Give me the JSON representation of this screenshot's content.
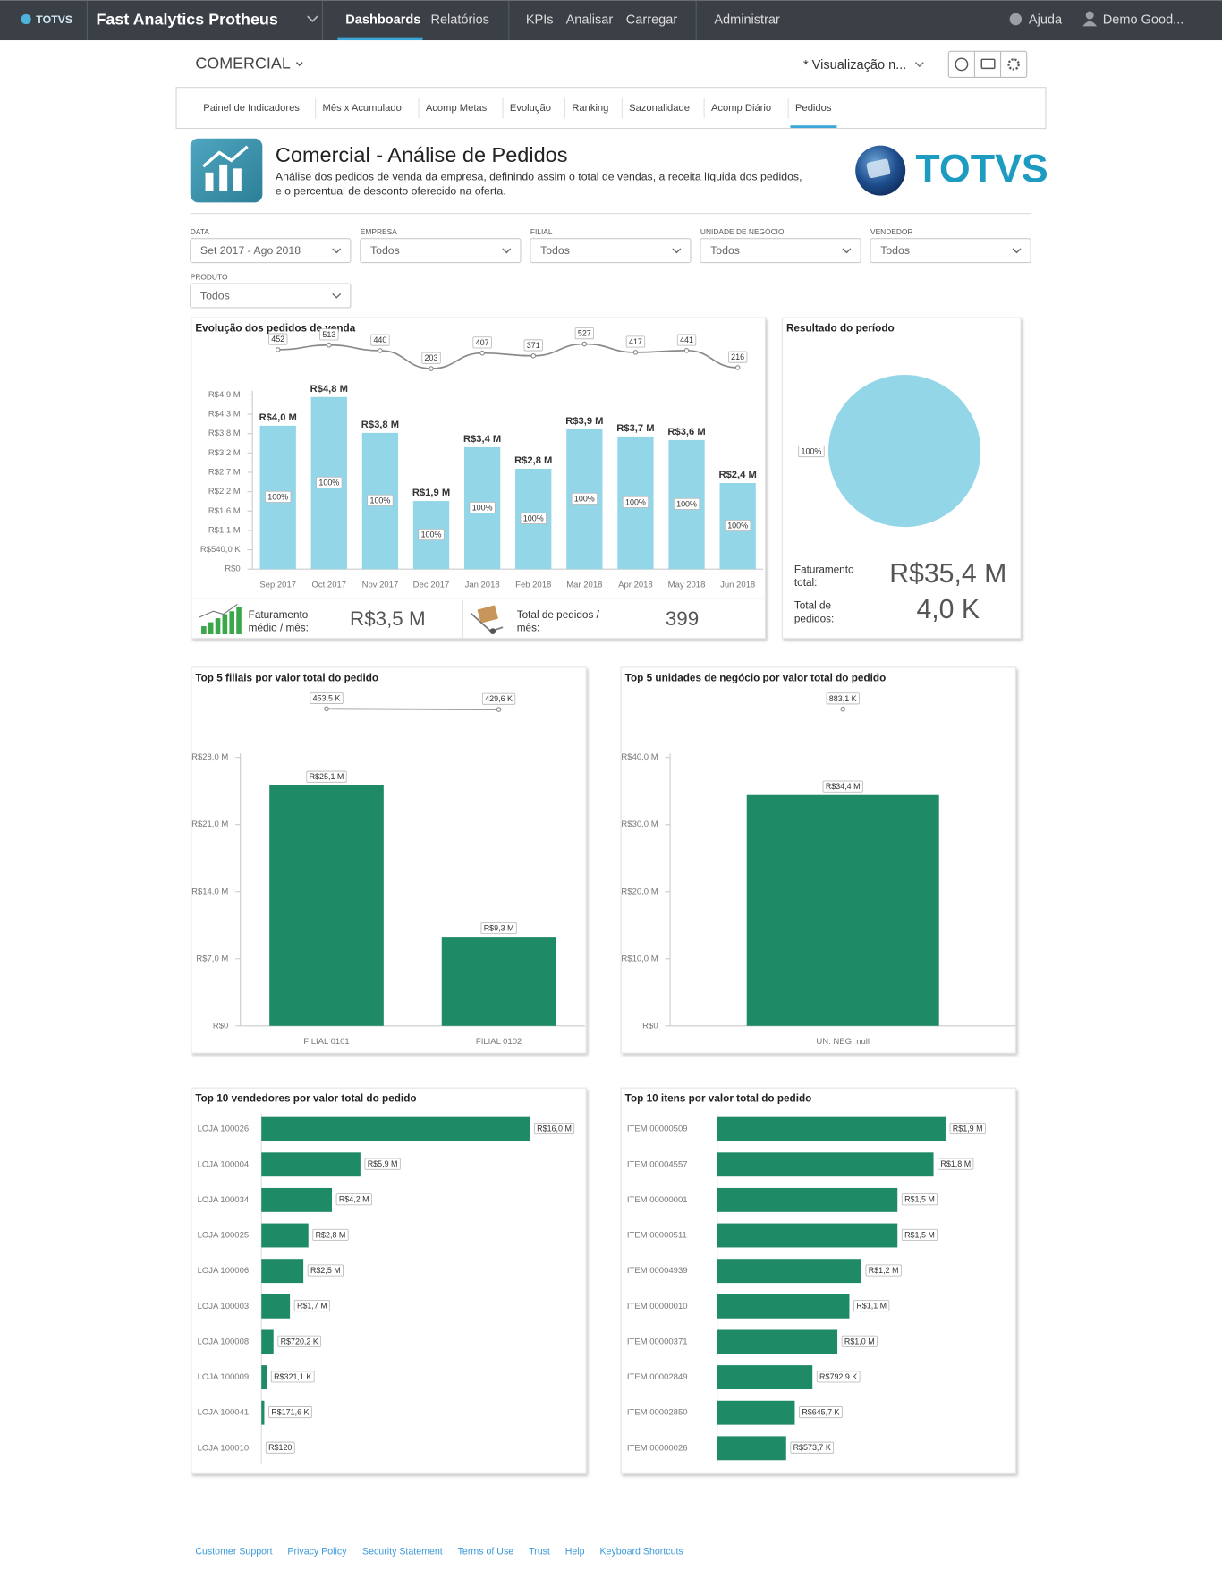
{
  "nav": {
    "brand": "TOTVS",
    "app": "Fast Analytics Protheus",
    "items": [
      "Dashboards",
      "Relatórios",
      "KPIs",
      "Analisar",
      "Carregar",
      "Administrar"
    ],
    "help": "Ajuda",
    "user": "Demo Good..."
  },
  "toolbar": {
    "title": "COMERCIAL",
    "view": "* Visualização n..."
  },
  "tabs": [
    "Painel de Indicadores",
    "Mês x Acumulado",
    "Acomp Metas",
    "Evolução",
    "Ranking",
    "Sazonalidade",
    "Acomp Diário",
    "Pedidos"
  ],
  "header": {
    "title": "Comercial - Análise de Pedidos",
    "description_lines": [
      "Análise dos pedidos de venda da empresa, definindo assim o total de vendas, a receita líquida dos pedidos,",
      "e o percentual de desconto oferecido na oferta."
    ],
    "logo": "TOTVS"
  },
  "filters": [
    {
      "label": "DATA",
      "value": "Set 2017 - Ago 2018"
    },
    {
      "label": "EMPRESA",
      "value": "Todos"
    },
    {
      "label": "FILIAL",
      "value": "Todos"
    },
    {
      "label": "UNIDADE DE NEGÓCIO",
      "value": "Todos"
    },
    {
      "label": "VENDEDOR",
      "value": "Todos"
    },
    {
      "label": "PRODUTO",
      "value": "Todos"
    }
  ],
  "chart_data": [
    {
      "type": "bar",
      "title": "Evolução dos pedidos de venda",
      "categories": [
        "Sep 2017",
        "Oct 2017",
        "Nov 2017",
        "Dec 2017",
        "Jan 2018",
        "Feb 2018",
        "Mar 2018",
        "Apr 2018",
        "May 2018",
        "Jun 2018"
      ],
      "series": [
        {
          "color": "#93d6e8",
          "values": [
            4000000,
            4800000,
            3800000,
            1900000,
            3400000,
            2800000,
            3900000,
            3700000,
            3600000,
            2400000
          ],
          "value_labels": [
            "R$4,0 M",
            "R$4,8 M",
            "R$3,8 M",
            "R$1,9 M",
            "R$3,4 M",
            "R$2,8 M",
            "R$3,9 M",
            "R$3,7 M",
            "R$3,6 M",
            "R$2,4 M"
          ]
        },
        {
          "color": "#8a8a8a",
          "axis": "y2",
          "values": [
            452,
            513,
            440,
            203,
            407,
            371,
            527,
            417,
            441,
            216
          ]
        }
      ],
      "inner_labels": [
        "100%",
        "100%",
        "100%",
        "100%",
        "100%",
        "100%",
        "100%",
        "100%",
        "100%",
        "100%"
      ],
      "ylim": [
        0,
        4860000
      ],
      "yticks": [
        {
          "value": 0,
          "label": "R$0"
        },
        {
          "value": 540000,
          "label": "R$540,0 K"
        },
        {
          "value": 1080000,
          "label": "R$1,1 M"
        },
        {
          "value": 1620000,
          "label": "R$1,6 M"
        },
        {
          "value": 2160000,
          "label": "R$2,2 M"
        },
        {
          "value": 2700000,
          "label": "R$2,7 M"
        },
        {
          "value": 3240000,
          "label": "R$3,2 M"
        },
        {
          "value": 3780000,
          "label": "R$3,8 M"
        },
        {
          "value": 4320000,
          "label": "R$4,3 M"
        },
        {
          "value": 4860000,
          "label": "R$4,9 M"
        }
      ],
      "y2lim": [
        200,
        530
      ],
      "grid": false,
      "kpis": [
        {
          "label_lines": [
            "Faturamento",
            "médio / mês:"
          ],
          "value": "R$3,5 M"
        },
        {
          "label_lines": [
            "Total de pedidos /",
            "mês:"
          ],
          "value": "399"
        }
      ]
    },
    {
      "type": "pie",
      "title": "Resultado do período",
      "values": [
        100
      ],
      "value_labels": [
        "100%"
      ],
      "colors": [
        "#93d6e8"
      ],
      "kpis": [
        {
          "label_lines": [
            "Faturamento",
            "total:"
          ],
          "value": "R$35,4 M"
        },
        {
          "label_lines": [
            "Total de",
            "pedidos:"
          ],
          "value": "4,0 K"
        }
      ]
    },
    {
      "type": "bar",
      "title": "Top 5 filiais por valor total do pedido",
      "categories": [
        "FILIAL 0101",
        "FILIAL 0102"
      ],
      "series": [
        {
          "color": "#1e8a66",
          "values": [
            25100000,
            9300000
          ],
          "value_labels": [
            "R$25,1 M",
            "R$9,3 M"
          ]
        },
        {
          "color": "#8a8a8a",
          "axis": "y2",
          "values": [
            453500,
            429600
          ],
          "value_labels": [
            "453,5 K",
            "429,6 K"
          ]
        }
      ],
      "ylim": [
        0,
        28000000
      ],
      "yticks": [
        {
          "value": 0,
          "label": "R$0"
        },
        {
          "value": 7000000,
          "label": "R$7,0 M"
        },
        {
          "value": 14000000,
          "label": "R$14,0 M"
        },
        {
          "value": 21000000,
          "label": "R$21,0 M"
        },
        {
          "value": 28000000,
          "label": "R$28,0 M"
        }
      ],
      "y2lim": [
        0,
        900000
      ],
      "grid": false
    },
    {
      "type": "bar",
      "title": "Top 5 unidades de negócio por valor total do pedido",
      "categories": [
        "UN. NEG. null"
      ],
      "series": [
        {
          "color": "#1e8a66",
          "values": [
            34400000
          ],
          "value_labels": [
            "R$34,4 M"
          ]
        },
        {
          "color": "#8a8a8a",
          "axis": "y2",
          "values": [
            883100
          ],
          "value_labels": [
            "883,1 K"
          ]
        }
      ],
      "ylim": [
        0,
        40000000
      ],
      "yticks": [
        {
          "value": 0,
          "label": "R$0"
        },
        {
          "value": 10000000,
          "label": "R$10,0 M"
        },
        {
          "value": 20000000,
          "label": "R$20,0 M"
        },
        {
          "value": 30000000,
          "label": "R$30,0 M"
        },
        {
          "value": 40000000,
          "label": "R$40,0 M"
        }
      ],
      "y2lim": [
        0,
        1800000
      ],
      "grid": false
    },
    {
      "type": "barh",
      "title": "Top 10 vendedores por valor total do pedido",
      "categories": [
        "LOJA 100026",
        "LOJA 100004",
        "LOJA 100034",
        "LOJA 100025",
        "LOJA 100006",
        "LOJA 100003",
        "LOJA 100008",
        "LOJA 100009",
        "LOJA 100041",
        "LOJA 100010"
      ],
      "values": [
        16000000,
        5900000,
        4200000,
        2800000,
        2500000,
        1700000,
        720200,
        321100,
        171600,
        120
      ],
      "value_labels": [
        "R$16,0 M",
        "R$5,9 M",
        "R$4,2 M",
        "R$2,8 M",
        "R$2,5 M",
        "R$1,7 M",
        "R$720,2 K",
        "R$321,1 K",
        "R$171,6 K",
        "R$120"
      ],
      "color": "#1e8a66",
      "xlim": [
        0,
        16000000
      ]
    },
    {
      "type": "barh",
      "title": "Top 10 itens por valor total do pedido",
      "categories": [
        "ITEM 00000509",
        "ITEM 00004557",
        "ITEM 00000001",
        "ITEM 00000511",
        "ITEM 00004939",
        "ITEM 00000010",
        "ITEM 00000371",
        "ITEM 00002849",
        "ITEM 00002850",
        "ITEM 00000026"
      ],
      "values": [
        1900000,
        1800000,
        1500000,
        1500000,
        1200000,
        1100000,
        1000000,
        792900,
        645700,
        573700
      ],
      "value_labels": [
        "R$1,9 M",
        "R$1,8 M",
        "R$1,5 M",
        "R$1,5 M",
        "R$1,2 M",
        "R$1,1 M",
        "R$1,0 M",
        "R$792,9 K",
        "R$645,7 K",
        "R$573,7 K"
      ],
      "color": "#1e8a66",
      "xlim": [
        0,
        1900000
      ]
    }
  ],
  "footer": [
    "Customer Support",
    "Privacy Policy",
    "Security Statement",
    "Terms of Use",
    "Trust",
    "Help",
    "Keyboard Shortcuts"
  ]
}
